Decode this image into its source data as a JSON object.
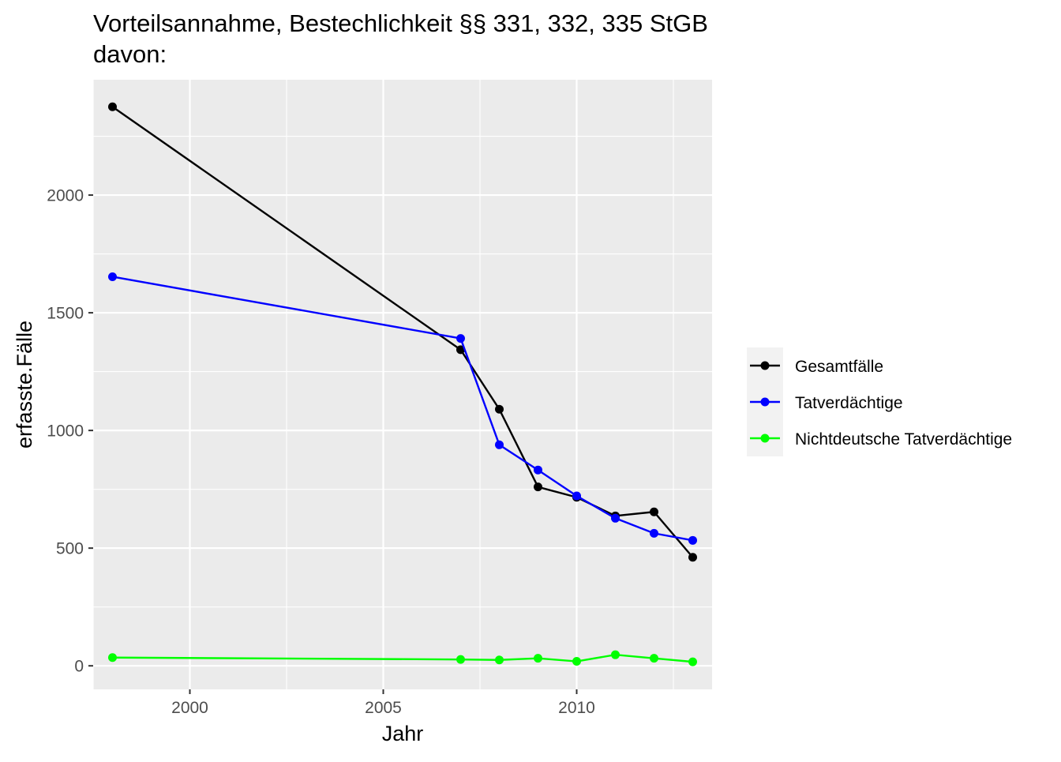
{
  "chart_data": {
    "type": "line",
    "title": "Vorteilsannahme, Bestechlichkeit §§ 331, 332, 335 StGB",
    "subtitle": "davon:",
    "xlabel": "Jahr",
    "ylabel": "erfasste.Fälle",
    "xlim": [
      1997.5,
      2013.5
    ],
    "ylim": [
      -100,
      2490
    ],
    "x_ticks": [
      2000,
      2005,
      2010
    ],
    "y_ticks": [
      0,
      500,
      1000,
      1500,
      2000
    ],
    "grid": true,
    "legend_position": "right",
    "x": [
      1998,
      2007,
      2008,
      2009,
      2010,
      2011,
      2012,
      2013
    ],
    "series": [
      {
        "name": "Gesamtfälle",
        "color": "#000000",
        "values": [
          2375,
          1343,
          1090,
          760,
          716,
          637,
          654,
          461
        ]
      },
      {
        "name": "Tatverdächtige",
        "color": "#0000ff",
        "values": [
          1653,
          1391,
          939,
          832,
          722,
          627,
          563,
          533
        ]
      },
      {
        "name": "Nichtdeutsche Tatverdächtige",
        "color": "#00ff00",
        "values": [
          35,
          27,
          25,
          32,
          19,
          47,
          32,
          17
        ]
      }
    ]
  }
}
